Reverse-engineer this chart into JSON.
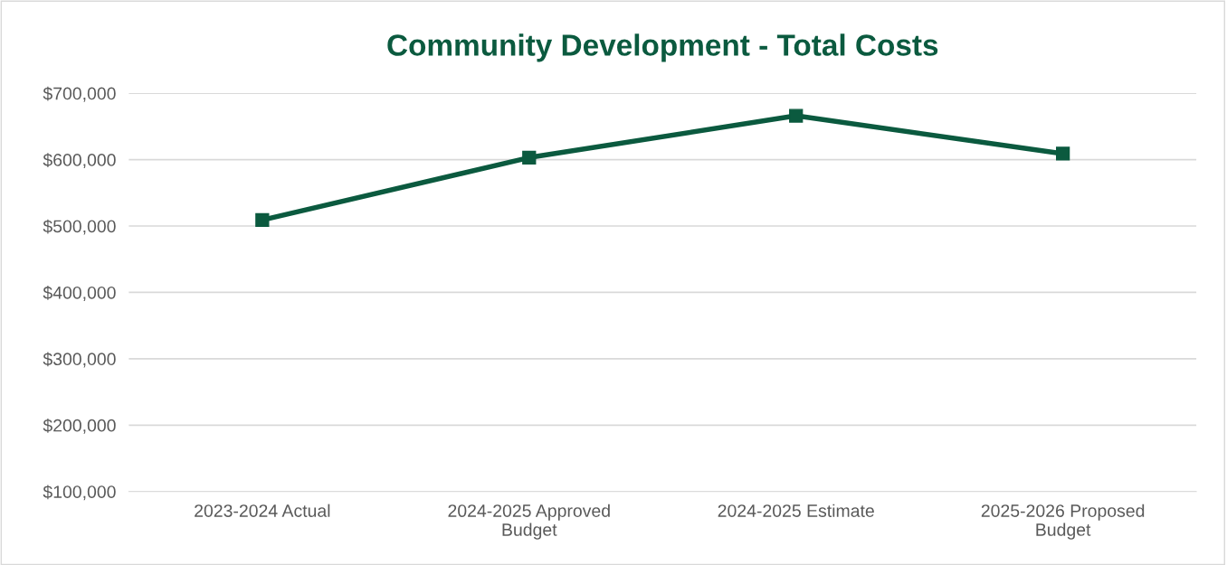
{
  "chart_data": {
    "type": "line",
    "title": "Community Development - Total Costs",
    "categories": [
      "2023-2024 Actual",
      "2024-2025 Approved\nBudget",
      "2024-2025 Estimate",
      "2025-2026 Proposed\nBudget"
    ],
    "series": [
      {
        "color": "#0b5a3f",
        "values": [
          509000,
          603000,
          666000,
          609000
        ]
      }
    ],
    "ylim": [
      100000,
      700000
    ],
    "yticks": [
      {
        "value": 100000,
        "label": "$100,000"
      },
      {
        "value": 200000,
        "label": "$200,000"
      },
      {
        "value": 300000,
        "label": "$300,000"
      },
      {
        "value": 400000,
        "label": "$400,000"
      },
      {
        "value": 500000,
        "label": "$500,000"
      },
      {
        "value": 600000,
        "label": "$600,000"
      },
      {
        "value": 700000,
        "label": "$700,000"
      }
    ],
    "grid": "y",
    "marker": "square",
    "line_style": "solid"
  }
}
